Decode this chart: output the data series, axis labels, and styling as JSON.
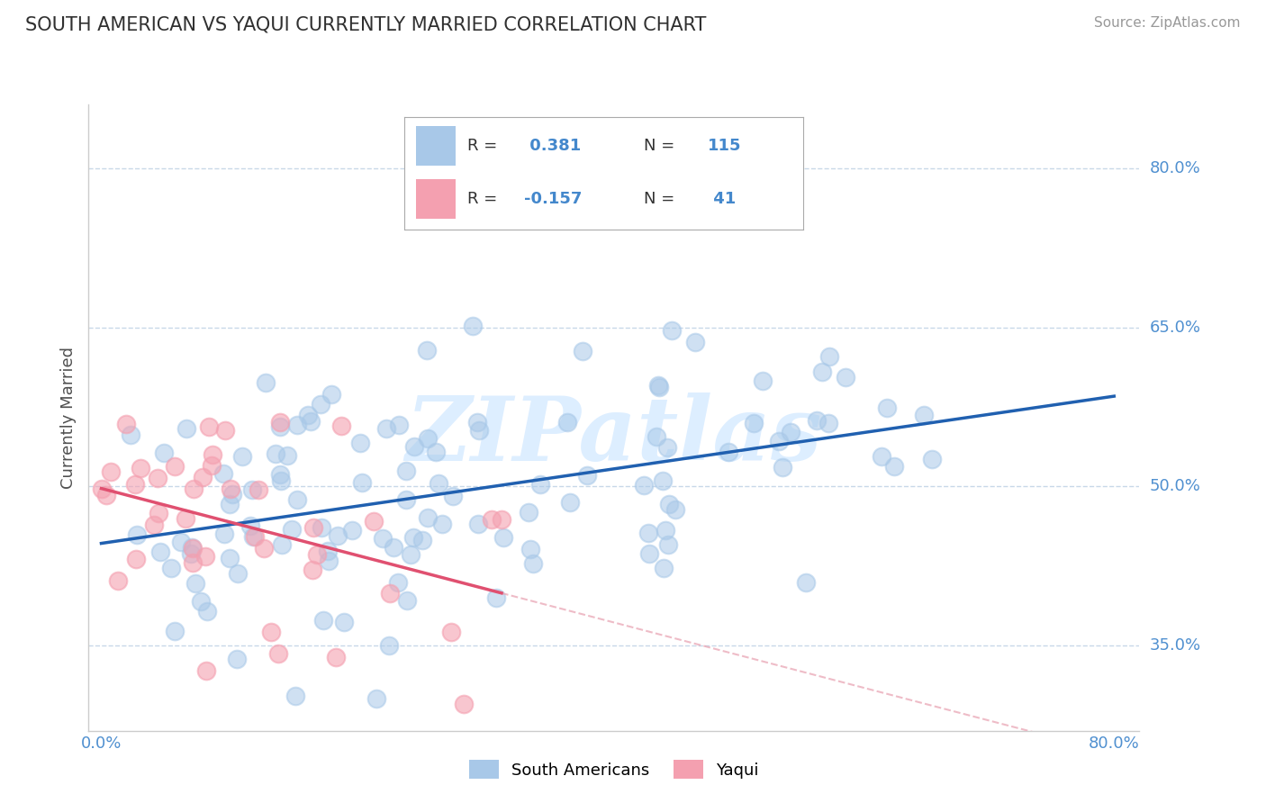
{
  "title": "SOUTH AMERICAN VS YAQUI CURRENTLY MARRIED CORRELATION CHART",
  "source_text": "Source: ZipAtlas.com",
  "ylabel": "Currently Married",
  "y_ticks": [
    0.35,
    0.5,
    0.65,
    0.8
  ],
  "y_tick_labels": [
    "35.0%",
    "50.0%",
    "65.0%",
    "80.0%"
  ],
  "xlim": [
    -0.01,
    0.82
  ],
  "ylim": [
    0.27,
    0.86
  ],
  "blue_R": 0.381,
  "blue_N": 115,
  "pink_R": -0.157,
  "pink_N": 41,
  "blue_color": "#a8c8e8",
  "pink_color": "#f4a0b0",
  "blue_line_color": "#2060b0",
  "pink_line_color": "#e05070",
  "pink_dash_color": "#e8a0b0",
  "grid_color": "#c8d8e8",
  "title_color": "#303030",
  "axis_label_color": "#5090d0",
  "watermark_text": "ZIPatlas",
  "watermark_color": "#ddeeff",
  "background_color": "#ffffff",
  "legend_R_color": "#4488cc",
  "legend_N_color": "#4488cc",
  "legend_box_color": "#aaaaaa"
}
